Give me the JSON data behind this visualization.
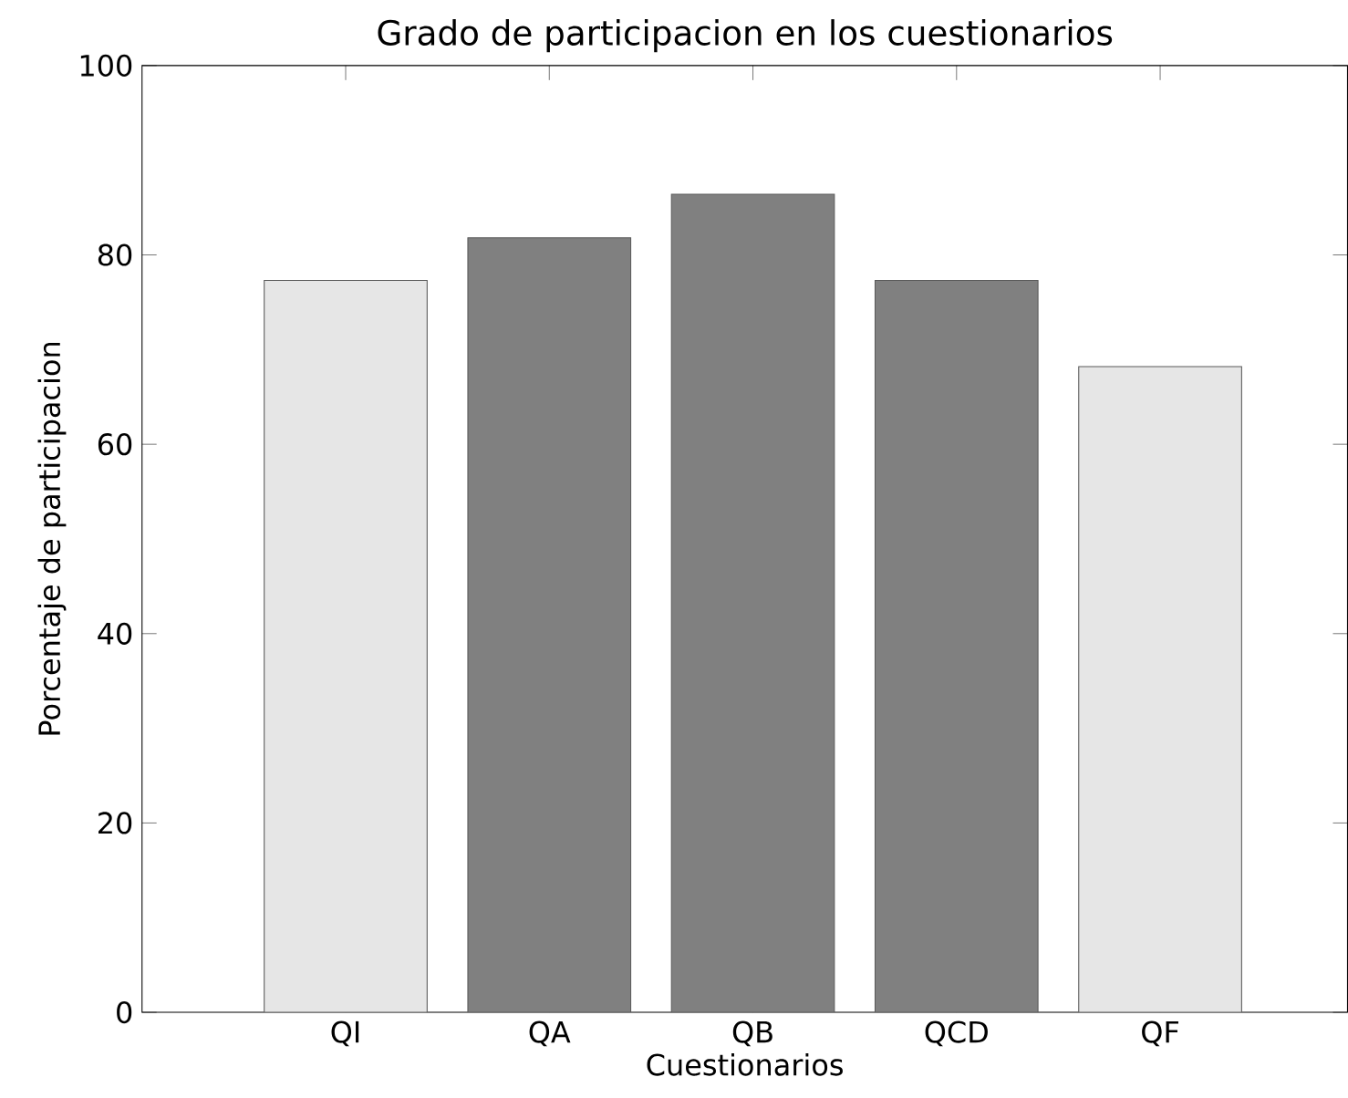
{
  "chart_data": {
    "type": "bar",
    "title": "Grado de participacion en los cuestionarios",
    "xlabel": "Cuestionarios",
    "ylabel": "Porcentaje de participacion",
    "categories": [
      "QI",
      "QA",
      "QB",
      "QCD",
      "QF"
    ],
    "values": [
      77.3,
      81.8,
      86.4,
      77.3,
      68.2
    ],
    "colors": [
      "#e6e6e6",
      "#808080",
      "#808080",
      "#808080",
      "#e6e6e6"
    ],
    "ylim": [
      0,
      100
    ],
    "yticks": [
      0,
      20,
      40,
      60,
      80,
      100
    ],
    "grid": false
  }
}
